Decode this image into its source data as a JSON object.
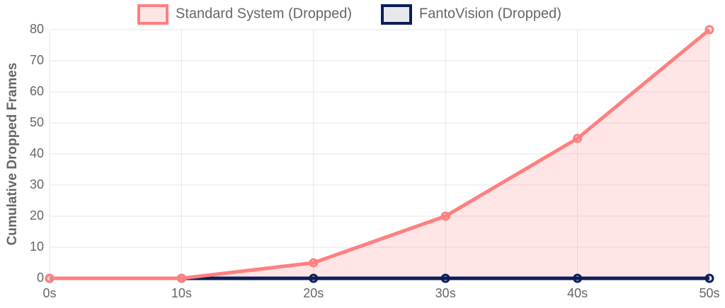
{
  "chart_data": {
    "type": "line",
    "y_label": "Cumulative Dropped Frames",
    "categories": [
      "0s",
      "10s",
      "20s",
      "30s",
      "40s",
      "50s"
    ],
    "series": [
      {
        "name": "Standard System (Dropped)",
        "color": "#ff7f7f",
        "fill_color": "rgba(255,127,127,0.2)",
        "values": [
          0,
          0,
          5,
          20,
          45,
          80
        ]
      },
      {
        "name": "FantoVision (Dropped)",
        "color": "#0b1d5a",
        "fill_color": "rgba(11,29,90,0.1)",
        "values": [
          0,
          0,
          0,
          0,
          0,
          0
        ]
      }
    ],
    "ylim": [
      0,
      80
    ],
    "yticks": [
      0,
      10,
      20,
      30,
      40,
      50,
      60,
      70,
      80
    ],
    "grid": true,
    "legend": "top"
  }
}
